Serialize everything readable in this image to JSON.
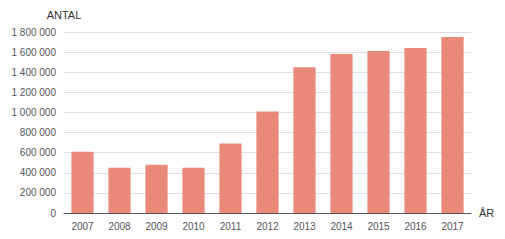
{
  "chart_data": {
    "type": "bar",
    "ylabel": "ANTAL",
    "xlabel": "ÅR",
    "categories": [
      "2007",
      "2008",
      "2009",
      "2010",
      "2011",
      "2012",
      "2013",
      "2014",
      "2015",
      "2016",
      "2017"
    ],
    "values": [
      610000,
      450000,
      480000,
      450000,
      690000,
      1010000,
      1450000,
      1580000,
      1610000,
      1640000,
      1750000
    ],
    "color": "#e8897a",
    "ylim": [
      0,
      1800000
    ],
    "yticks": [
      0,
      {
        "value": 200000,
        "label": "200 000"
      },
      {
        "value": 400000,
        "label": "400 000"
      },
      {
        "value": 600000,
        "label": "600 000"
      },
      {
        "value": 800000,
        "label": "800 000"
      },
      {
        "value": 1000000,
        "label": "1 000 000"
      },
      {
        "value": 1200000,
        "label": "1 200 000"
      },
      {
        "value": 1400000,
        "label": "1 400 000"
      },
      {
        "value": 1600000,
        "label": "1 600 000"
      },
      {
        "value": 1800000,
        "label": "1 800 000"
      }
    ],
    "grid": true
  }
}
